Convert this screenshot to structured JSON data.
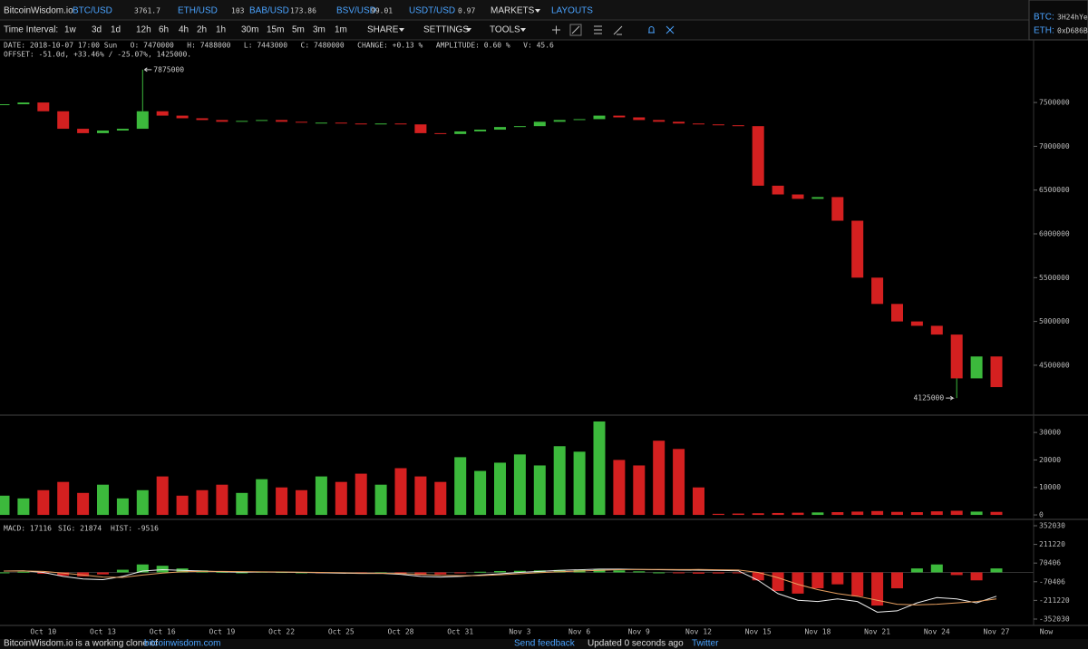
{
  "header": {
    "brand": "BitcoinWisdom.io",
    "tickers": [
      {
        "pair": "BTC/USD",
        "price": 3761.7
      },
      {
        "pair": "ETH/USD",
        "price": 103
      },
      {
        "pair": "BAB/USD",
        "price": 173.86
      },
      {
        "pair": "BSV/USD",
        "price": 99.01
      },
      {
        "pair": "USDT/USD",
        "price": 0.97
      }
    ],
    "markets": "MARKETS",
    "layouts": "LAYOUTS",
    "wallets": [
      {
        "coin": "BTC:",
        "address": "3H24hYe"
      },
      {
        "coin": "ETH:",
        "address": "0xD686B2"
      }
    ]
  },
  "toolbar": {
    "label": "Time Interval:",
    "intervals": [
      "1w",
      "3d",
      "1d",
      "12h",
      "6h",
      "4h",
      "2h",
      "1h",
      "30m",
      "15m",
      "5m",
      "3m",
      "1m"
    ],
    "active_interval": 5,
    "share": "SHARE",
    "settings": "SETTINGS",
    "tools": "TOOLS"
  },
  "info": {
    "line1": "DATE: 2018-10-07 17:00 Sun   O: 7470000   H: 7488000   L: 7443000   C: 7480000   CHANGE: +0.13 %   AMPLITUDE: 0.60 %   V: 45.6",
    "line2": "OFFSET: -51.0d, +33.46% / -25.07%, 1425000.",
    "macd_line": "MACD: 17116",
    "sig_line": "SIG: 21874",
    "hist_line": "HIST: -9516"
  },
  "chart_data": [
    {
      "type": "candlestick",
      "categories": [
        null,
        null,
        "Oct 10",
        null,
        null,
        "Oct 13",
        null,
        null,
        "Oct 16",
        null,
        null,
        "Oct 19",
        null,
        null,
        "Oct 22",
        null,
        null,
        "Oct 25",
        null,
        null,
        "Oct 28",
        null,
        null,
        "Oct 31",
        null,
        null,
        "Nov 3",
        null,
        null,
        "Nov 6",
        null,
        null,
        "Nov 9",
        null,
        null,
        "Nov 12",
        null,
        null,
        "Nov 15",
        null,
        null,
        "Nov 18",
        null,
        null,
        "Nov 21",
        null,
        null,
        "Nov 24",
        null,
        null,
        "Nov 27"
      ],
      "now_label": "Now",
      "open": [
        7470000,
        7480000,
        7500000,
        7400000,
        7200000,
        7150000,
        7180000,
        7200000,
        7400000,
        7350000,
        7320000,
        7300000,
        7280000,
        7290000,
        7300000,
        7280000,
        7270000,
        7270000,
        7260000,
        7250000,
        7260000,
        7250000,
        7150000,
        7140000,
        7170000,
        7190000,
        7220000,
        7230000,
        7280000,
        7300000,
        7310000,
        7350000,
        7330000,
        7300000,
        7280000,
        7260000,
        7250000,
        7240000,
        7230000,
        6550000,
        6450000,
        6400000,
        6420000,
        6150000,
        5500000,
        5200000,
        5000000,
        4950000,
        4850000,
        4350000,
        4600000
      ],
      "close": [
        7480000,
        7500000,
        7400000,
        7200000,
        7150000,
        7180000,
        7200000,
        7400000,
        7350000,
        7320000,
        7300000,
        7280000,
        7290000,
        7300000,
        7280000,
        7270000,
        7270000,
        7260000,
        7250000,
        7260000,
        7250000,
        7150000,
        7140000,
        7170000,
        7190000,
        7220000,
        7230000,
        7280000,
        7300000,
        7310000,
        7350000,
        7330000,
        7300000,
        7280000,
        7260000,
        7250000,
        7240000,
        7230000,
        6550000,
        6450000,
        6400000,
        6420000,
        6150000,
        5500000,
        5200000,
        5000000,
        4950000,
        4850000,
        4350000,
        4600000,
        4250000
      ],
      "up_color": "#3cb93c",
      "down_color": "#d42020",
      "annotations": [
        {
          "index": 7,
          "value": 7875000,
          "side": "right"
        },
        {
          "index": 48,
          "value": 4125000,
          "side": "left"
        }
      ],
      "ylim": [
        3930000,
        8215000
      ],
      "yticks": [
        7500000,
        7000000,
        6500000,
        6000000,
        5500000,
        5000000,
        4500000
      ]
    },
    {
      "type": "bar",
      "values": [
        7000,
        6000,
        9000,
        12000,
        8000,
        11000,
        6000,
        9000,
        14000,
        7000,
        9000,
        11000,
        8000,
        13000,
        10000,
        9000,
        14000,
        12000,
        15000,
        11000,
        17000,
        14000,
        12000,
        21000,
        16000,
        19000,
        22000,
        18000,
        25000,
        23000,
        34000,
        20000,
        18000,
        27000,
        24000,
        10000,
        400,
        500,
        600,
        700,
        800,
        900,
        1000,
        1200,
        1400,
        1100,
        1000,
        1300,
        1500,
        1200,
        1100
      ],
      "ylim": [
        -1300,
        36300
      ],
      "yticks": [
        30000,
        20000,
        10000,
        0
      ]
    },
    {
      "type": "macd",
      "hist": [
        0,
        5000,
        -10000,
        -25000,
        -30000,
        -15000,
        20000,
        60000,
        50000,
        30000,
        15000,
        5000,
        0,
        5000,
        3000,
        0,
        -2000,
        -5000,
        -3000,
        0,
        -10000,
        -20000,
        -15000,
        -5000,
        5000,
        10000,
        12000,
        15000,
        18000,
        20000,
        22000,
        15000,
        8000,
        0,
        -5000,
        -9516,
        -8000,
        -5000,
        -60000,
        -140000,
        -160000,
        -120000,
        -90000,
        -180000,
        -250000,
        -120000,
        30000,
        60000,
        -20000,
        -60000,
        30000
      ],
      "macd": [
        10000,
        12000,
        0,
        -30000,
        -50000,
        -55000,
        -30000,
        10000,
        20000,
        15000,
        10000,
        5000,
        2000,
        3000,
        2000,
        0,
        -3000,
        -6000,
        -8000,
        -7000,
        -15000,
        -30000,
        -35000,
        -30000,
        -20000,
        -10000,
        0,
        8000,
        15000,
        20000,
        25000,
        25000,
        22000,
        20000,
        18000,
        17116,
        15000,
        12000,
        -60000,
        -160000,
        -210000,
        -220000,
        -200000,
        -220000,
        -300000,
        -290000,
        -230000,
        -190000,
        -200000,
        -230000,
        -180000
      ],
      "signal": [
        10000,
        11000,
        8000,
        -5000,
        -20000,
        -35000,
        -38000,
        -20000,
        -5000,
        5000,
        8000,
        8000,
        6000,
        4000,
        3000,
        2000,
        0,
        -3000,
        -5000,
        -6000,
        -9000,
        -15000,
        -22000,
        -25000,
        -24000,
        -18000,
        -10000,
        -2000,
        5000,
        10000,
        15000,
        20000,
        22000,
        22000,
        21000,
        21874,
        20000,
        18000,
        0,
        -40000,
        -90000,
        -130000,
        -160000,
        -180000,
        -210000,
        -240000,
        -245000,
        -240000,
        -230000,
        -220000,
        -200000
      ],
      "up_color": "#3cb93c",
      "down_color": "#d42020",
      "macd_color": "#eeeeee",
      "signal_color": "#e8a060",
      "ylim": [
        -400000,
        393000
      ],
      "yticks": [
        352030,
        211220,
        70406,
        -70406,
        -211220,
        -352030
      ]
    }
  ],
  "footer": {
    "note": "BitcoinWisdom.io is a working clone of",
    "link": "bitcoinwisdom.com",
    "feedback": "Send feedback",
    "updated": "Updated 0 seconds ago",
    "twitter": "Twitter"
  }
}
